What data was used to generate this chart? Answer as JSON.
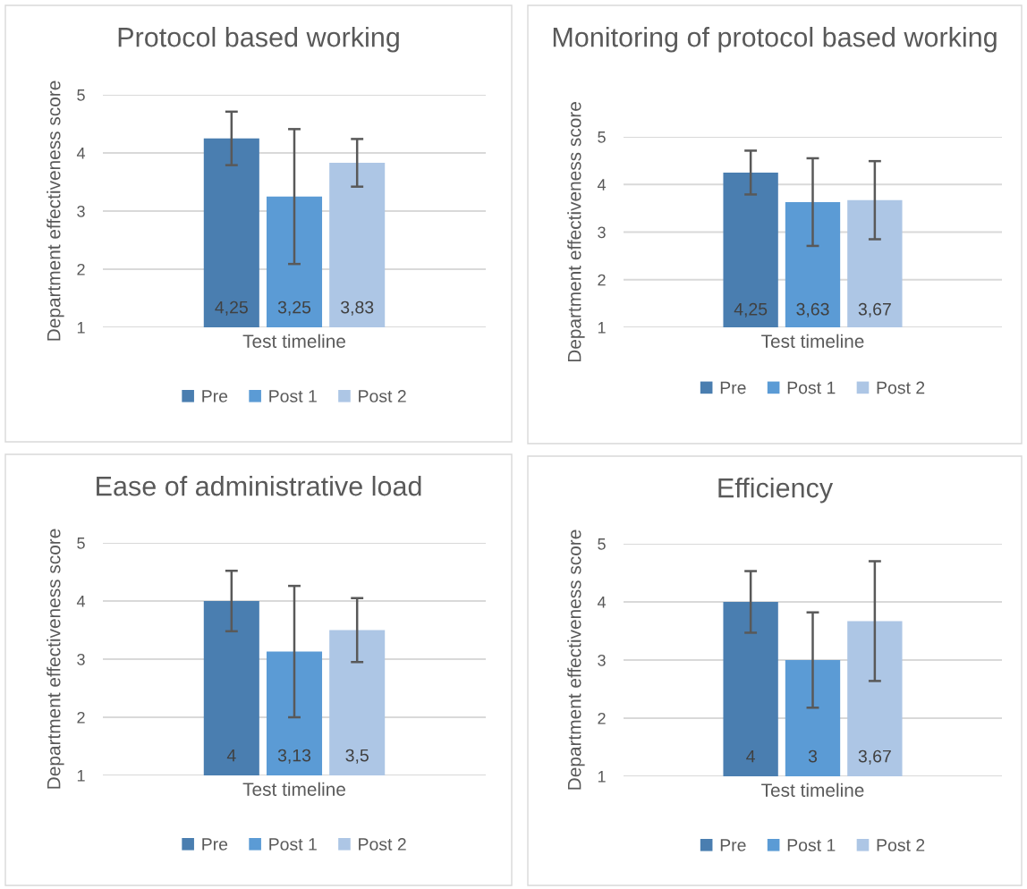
{
  "chart_data": [
    {
      "type": "bar",
      "title": "Protocol based working",
      "xlabel": "Test timeline",
      "ylabel": "Department effectiveness score",
      "categories": [
        null
      ],
      "ylim": [
        1,
        5
      ],
      "yticks": [
        1,
        2,
        3,
        4,
        5
      ],
      "grid": "y",
      "legend": "bottom",
      "series": [
        {
          "name": "Pre",
          "color": "#4a7eb0",
          "values": [
            4.25
          ],
          "errors": [
            0.46
          ],
          "value_labels": [
            "4,25"
          ]
        },
        {
          "name": "Post 1",
          "color": "#5b9bd5",
          "values": [
            3.25
          ],
          "errors": [
            1.16
          ],
          "value_labels": [
            "3,25"
          ]
        },
        {
          "name": "Post 2",
          "color": "#adc6e5",
          "values": [
            3.83
          ],
          "errors": [
            0.41
          ],
          "value_labels": [
            "3,83"
          ]
        }
      ]
    },
    {
      "type": "bar",
      "title": "Monitoring of protocol based working",
      "xlabel": "Test timeline",
      "ylabel": "Department effectiveness score",
      "categories": [
        null
      ],
      "ylim": [
        1,
        5
      ],
      "yticks": [
        1,
        2,
        3,
        4,
        5
      ],
      "grid": "y",
      "legend": "bottom",
      "series": [
        {
          "name": "Pre",
          "color": "#4a7eb0",
          "values": [
            4.25
          ],
          "errors": [
            0.46
          ],
          "value_labels": [
            "4,25"
          ]
        },
        {
          "name": "Post 1",
          "color": "#5b9bd5",
          "values": [
            3.63
          ],
          "errors": [
            0.92
          ],
          "value_labels": [
            "3,63"
          ]
        },
        {
          "name": "Post 2",
          "color": "#adc6e5",
          "values": [
            3.67
          ],
          "errors": [
            0.82
          ],
          "value_labels": [
            "3,67"
          ]
        }
      ]
    },
    {
      "type": "bar",
      "title": "Ease of administrative load",
      "xlabel": "Test timeline",
      "ylabel": "Department effectiveness score",
      "categories": [
        null
      ],
      "ylim": [
        1,
        5
      ],
      "yticks": [
        1,
        2,
        3,
        4,
        5
      ],
      "grid": "y",
      "legend": "bottom",
      "series": [
        {
          "name": "Pre",
          "color": "#4a7eb0",
          "values": [
            4
          ],
          "errors": [
            0.52
          ],
          "value_labels": [
            "4"
          ]
        },
        {
          "name": "Post 1",
          "color": "#5b9bd5",
          "values": [
            3.13
          ],
          "errors": [
            1.13
          ],
          "value_labels": [
            "3,13"
          ]
        },
        {
          "name": "Post 2",
          "color": "#adc6e5",
          "values": [
            3.5
          ],
          "errors": [
            0.55
          ],
          "value_labels": [
            "3,5"
          ]
        }
      ]
    },
    {
      "type": "bar",
      "title": "Efficiency",
      "xlabel": "Test timeline",
      "ylabel": "Department effectiveness score",
      "categories": [
        null
      ],
      "ylim": [
        1,
        5
      ],
      "yticks": [
        1,
        2,
        3,
        4,
        5
      ],
      "grid": "y",
      "legend": "bottom",
      "series": [
        {
          "name": "Pre",
          "color": "#4a7eb0",
          "values": [
            4
          ],
          "errors": [
            0.53
          ],
          "value_labels": [
            "4"
          ]
        },
        {
          "name": "Post 1",
          "color": "#5b9bd5",
          "values": [
            3
          ],
          "errors": [
            0.82
          ],
          "value_labels": [
            "3"
          ]
        },
        {
          "name": "Post 2",
          "color": "#adc6e5",
          "values": [
            3.67
          ],
          "errors": [
            1.03
          ],
          "value_labels": [
            "3,67"
          ]
        }
      ]
    }
  ]
}
